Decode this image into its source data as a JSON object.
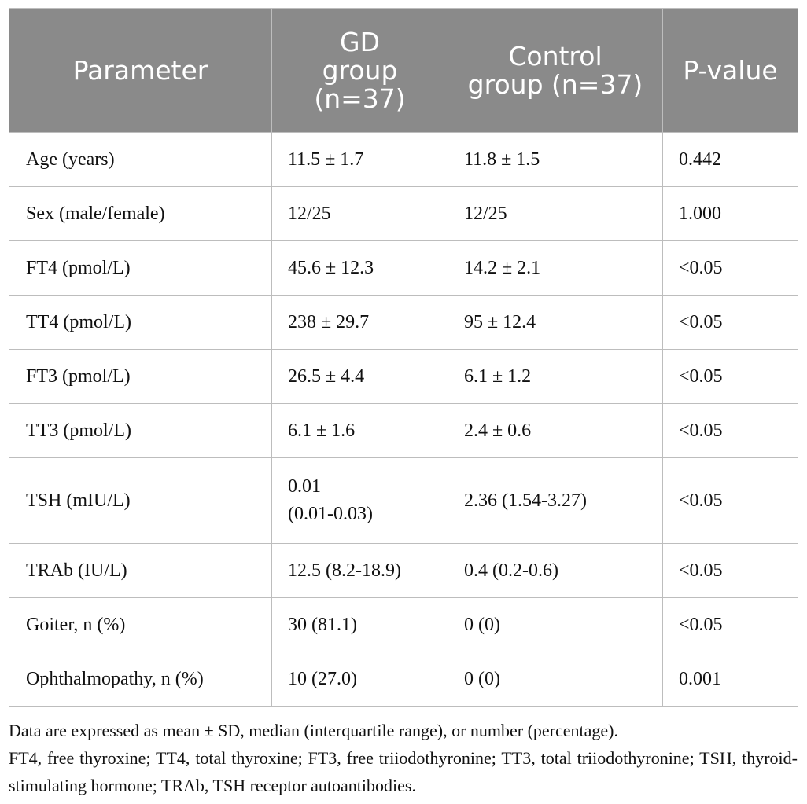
{
  "table": {
    "headers": [
      "Parameter",
      "GD\ngroup\n(n=37)",
      "Control\ngroup (n=37)",
      "P-value"
    ],
    "rows": [
      [
        "Age (years)",
        "11.5 ± 1.7",
        "11.8 ± 1.5",
        "0.442"
      ],
      [
        "Sex (male/female)",
        "12/25",
        "12/25",
        "1.000"
      ],
      [
        "FT4 (pmol/L)",
        "45.6 ± 12.3",
        "14.2 ± 2.1",
        "<0.05"
      ],
      [
        "TT4 (pmol/L)",
        "238 ± 29.7",
        "95 ± 12.4",
        "<0.05"
      ],
      [
        "FT3 (pmol/L)",
        "26.5 ± 4.4",
        "6.1 ± 1.2",
        "<0.05"
      ],
      [
        "TT3 (pmol/L)",
        "6.1 ± 1.6",
        "2.4 ± 0.6",
        "<0.05"
      ],
      [
        "TSH (mIU/L)",
        "0.01\n(0.01-0.03)",
        "2.36 (1.54-3.27)",
        "<0.05"
      ],
      [
        "TRAb (IU/L)",
        "12.5 (8.2-18.9)",
        "0.4 (0.2-0.6)",
        "<0.05"
      ],
      [
        "Goiter, n (%)",
        "30 (81.1)",
        "0 (0)",
        "<0.05"
      ],
      [
        "Ophthalmopathy, n (%)",
        "10 (27.0)",
        "0 (0)",
        "0.001"
      ]
    ]
  },
  "footnote": {
    "line1": "Data are expressed as mean ± SD, median (interquartile range), or number (percentage).",
    "line2": "FT4, free thyroxine; TT4, total thyroxine; FT3, free triiodothyronine; TT3, total triiodothyronine; TSH, thyroid-stimulating hormone; TRAb, TSH receptor autoantibodies."
  }
}
